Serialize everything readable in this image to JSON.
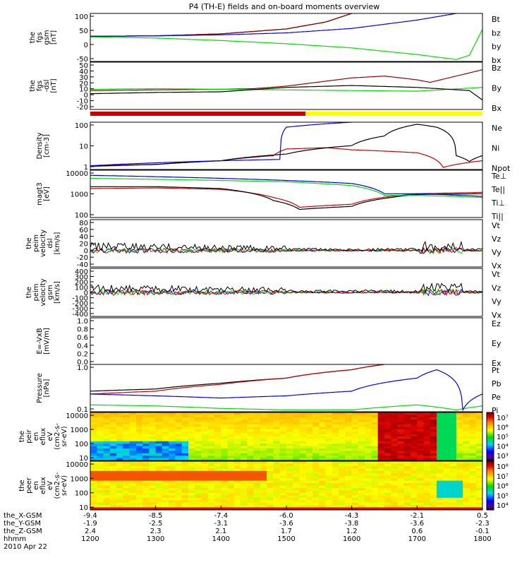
{
  "title": "P4 (TH-E) fields and on-board moments overview",
  "date_label": "2010 Apr 22",
  "x_rows": [
    {
      "label": "the_X-GSM",
      "values": [
        "-9.4",
        "-8.5",
        "-7.4",
        "-6.0",
        "-4.3",
        "-2.1",
        "0.5"
      ]
    },
    {
      "label": "the_Y-GSM",
      "values": [
        "-1.9",
        "-2.5",
        "-3.1",
        "-3.6",
        "-3.8",
        "-3.6",
        "-2.3"
      ]
    },
    {
      "label": "the_Z-GSM",
      "values": [
        "2.4",
        "2.3",
        "2.1",
        "1.7",
        "1.2",
        "0.6",
        "-0.1"
      ]
    },
    {
      "label": "hhmm",
      "values": [
        "1200",
        "1300",
        "1400",
        "1500",
        "1600",
        "1700",
        "1800"
      ]
    }
  ],
  "colors": {
    "black": "#000000",
    "red": "#cc0000",
    "green": "#00dd00",
    "blue": "#0000ee",
    "dark_red": "#990000",
    "yellow": "#ffff00"
  },
  "chart_data": [
    {
      "type": "line",
      "ylabel": [
        "the",
        "fgs",
        "gsm",
        "[nT]"
      ],
      "yticks": [
        "100",
        "50",
        "0",
        "-50"
      ],
      "ylim": [
        -90,
        105
      ],
      "legend": [
        "Bt",
        "bz",
        "by",
        "bx"
      ],
      "series": [
        {
          "name": "Bt",
          "x": [
            1200,
            1300,
            1400,
            1500,
            1560,
            1600
          ],
          "values": [
            12,
            14,
            22,
            42,
            70,
            105
          ]
        },
        {
          "name": "bz",
          "x": [
            1200,
            1300,
            1400,
            1500,
            1560,
            1600
          ],
          "values": [
            12,
            14,
            22,
            42,
            70,
            105
          ]
        },
        {
          "name": "by",
          "x": [
            1200,
            1300,
            1400,
            1500,
            1600,
            1700,
            1760,
            1780,
            1800
          ],
          "values": [
            10,
            5,
            -5,
            -18,
            -35,
            -62,
            -82,
            -65,
            40
          ]
        },
        {
          "name": "bx",
          "x": [
            1200,
            1300,
            1400,
            1500,
            1600,
            1700,
            1760
          ],
          "values": [
            12,
            14,
            18,
            26,
            44,
            78,
            105
          ]
        }
      ]
    },
    {
      "type": "line",
      "ylabel": [
        "the",
        "fgs",
        "-dsl",
        "[nT]"
      ],
      "yticks": [
        "50",
        "40",
        "30",
        "20",
        "10",
        "0",
        "-10",
        "-20"
      ],
      "ylim": [
        -25,
        50
      ],
      "legend": [
        "Bz",
        "By",
        "Bx"
      ],
      "series": [
        {
          "name": "Bz",
          "x": [
            1200,
            1300,
            1400,
            1450,
            1500,
            1600,
            1650,
            1700,
            1720,
            1760,
            1800
          ],
          "values": [
            5,
            6,
            7,
            8,
            12,
            25,
            28,
            22,
            18,
            28,
            38
          ]
        },
        {
          "name": "By",
          "x": [
            1200,
            1300,
            1400,
            1500,
            1600,
            1700,
            1800
          ],
          "values": [
            7,
            8,
            7,
            6,
            5,
            4,
            10
          ]
        },
        {
          "name": "Bx",
          "x": [
            1200,
            1300,
            1400,
            1500,
            1600,
            1700,
            1780,
            1800
          ],
          "values": [
            0,
            2,
            3,
            10,
            13,
            10,
            5,
            -10
          ]
        }
      ]
    },
    {
      "type": "line",
      "ylabel": [
        "Density",
        "[cm-3]"
      ],
      "yticks": [
        "100",
        "10",
        "1"
      ],
      "ylim": [
        0.3,
        200
      ],
      "log": true,
      "legend": [
        "Ne",
        "Ni",
        "Npot"
      ],
      "series": [
        {
          "name": "Ne",
          "x": [
            1200,
            1300,
            1400,
            1480,
            1500,
            1560,
            1600,
            1700,
            1740,
            1800
          ],
          "values": [
            0.45,
            0.6,
            1.0,
            2.0,
            5,
            6,
            4.5,
            3.0,
            0.4,
            1.0
          ]
        },
        {
          "name": "Ni",
          "x": [
            1200,
            1300,
            1400,
            1500,
            1600,
            1650,
            1700,
            1730,
            1760,
            1780,
            1800
          ],
          "values": [
            0.5,
            0.6,
            1.0,
            2.5,
            8,
            30,
            150,
            100,
            2,
            0.9,
            2
          ]
        },
        {
          "name": "Npot",
          "x": [
            1200,
            1400,
            1490,
            1500,
            1550,
            1600
          ],
          "values": [
            0.5,
            1.0,
            1.2,
            100,
            150,
            200
          ]
        }
      ]
    },
    {
      "type": "line",
      "ylabel": [
        "magt3",
        "[eV]"
      ],
      "yticks": [
        "10000",
        "1000",
        "100"
      ],
      "ylim": [
        20,
        12000
      ],
      "log": true,
      "legend": [
        "Te⊥",
        "Te||",
        "Ti⊥",
        "Ti||"
      ],
      "series": [
        {
          "name": "Te⊥",
          "x": [
            1200,
            1300,
            1400,
            1480,
            1520,
            1600,
            1660,
            1700,
            1800
          ],
          "values": [
            1000,
            1100,
            900,
            300,
            80,
            120,
            350,
            500,
            600
          ]
        },
        {
          "name": "Te||",
          "x": [
            1200,
            1300,
            1400,
            1480,
            1520,
            1600,
            1660,
            1700,
            1800
          ],
          "values": [
            1300,
            1300,
            1000,
            200,
            60,
            90,
            300,
            450,
            500
          ]
        },
        {
          "name": "Ti⊥",
          "x": [
            1200,
            1300,
            1400,
            1500,
            1600,
            1650,
            1700,
            1800
          ],
          "values": [
            6000,
            5000,
            4000,
            3000,
            2000,
            500,
            500,
            350
          ]
        },
        {
          "name": "Ti||",
          "x": [
            1200,
            1300,
            1400,
            1500,
            1600,
            1650,
            1700,
            1800
          ],
          "values": [
            4000,
            3500,
            3000,
            2500,
            1500,
            400,
            400,
            300
          ]
        }
      ]
    },
    {
      "type": "line",
      "ylabel": [
        "the",
        "peim",
        "velocity",
        "dsl",
        "[km/s]"
      ],
      "yticks": [
        "80",
        "60",
        "40",
        "20",
        "0",
        "-20",
        "-40"
      ],
      "ylim": [
        -45,
        85
      ],
      "legend": [
        "Vt",
        "Vz",
        "Vy",
        "Vx"
      ],
      "noisy": true
    },
    {
      "type": "line",
      "ylabel": [
        "the",
        "peim",
        "velocity",
        "gsm",
        "[km/s]"
      ],
      "yticks": [
        "400",
        "300",
        "200",
        "100",
        "0",
        "-100",
        "-200",
        "-300",
        "-400"
      ],
      "ylim": [
        -420,
        420
      ],
      "legend": [
        "Vt",
        "Vz",
        "Vy",
        "Vx"
      ],
      "noisy": true
    },
    {
      "type": "line",
      "ylabel": [
        "E=-VxB",
        "[mV/m]"
      ],
      "yticks": [
        "1.0",
        "0.8",
        "0.6",
        "0.4",
        "0.2",
        "0.0"
      ],
      "ylim": [
        0,
        1
      ],
      "legend": [
        "Ez",
        "Ey",
        "Ex"
      ],
      "series": []
    },
    {
      "type": "line",
      "ylabel": [
        "Pressure",
        "[nPa]"
      ],
      "yticks": [
        "1.0",
        "0.1"
      ],
      "ylim": [
        0.05,
        6
      ],
      "log": true,
      "legend": [
        "Pt",
        "Pb",
        "Pe",
        "Pi"
      ],
      "series": [
        {
          "name": "Pt",
          "x": [
            1200,
            1300,
            1400,
            1500,
            1600,
            1650
          ],
          "values": [
            0.4,
            0.5,
            0.9,
            1.5,
            3.5,
            6
          ]
        },
        {
          "name": "Pb",
          "x": [
            1200,
            1300,
            1400,
            1500,
            1600,
            1650
          ],
          "values": [
            0.3,
            0.4,
            0.8,
            1.5,
            3.5,
            6
          ]
        },
        {
          "name": "Pe",
          "x": [
            1200,
            1300,
            1400,
            1500,
            1600,
            1700,
            1760,
            1800
          ],
          "values": [
            0.1,
            0.09,
            0.07,
            0.06,
            0.06,
            0.1,
            0.06,
            0.09
          ]
        },
        {
          "name": "Pi",
          "x": [
            1200,
            1300,
            1400,
            1500,
            1600,
            1700,
            1730,
            1770,
            1800
          ],
          "values": [
            0.3,
            0.25,
            0.2,
            0.25,
            0.4,
            1.5,
            3.5,
            0.06,
            0.3
          ]
        }
      ]
    },
    {
      "type": "heatmap",
      "ylabel": [
        "the",
        "peir",
        "en",
        "eflux",
        "eV",
        "(cm2-s-",
        "sr-eV)"
      ],
      "yticks": [
        "10000",
        "1000",
        "100",
        "10"
      ],
      "colorbar_ticks": [
        "10⁷",
        "10⁶",
        "10⁵",
        "10⁴",
        "10³"
      ]
    },
    {
      "type": "heatmap",
      "ylabel": [
        "the",
        "peer",
        "en",
        "eflux",
        "eV",
        "(cm2-s-",
        "sr-eV)"
      ],
      "yticks": [
        "10000",
        "1000",
        "100",
        "10"
      ],
      "colorbar_ticks": [
        "10⁸",
        "10⁷",
        "10⁶",
        "10⁵",
        "10⁴"
      ]
    }
  ]
}
